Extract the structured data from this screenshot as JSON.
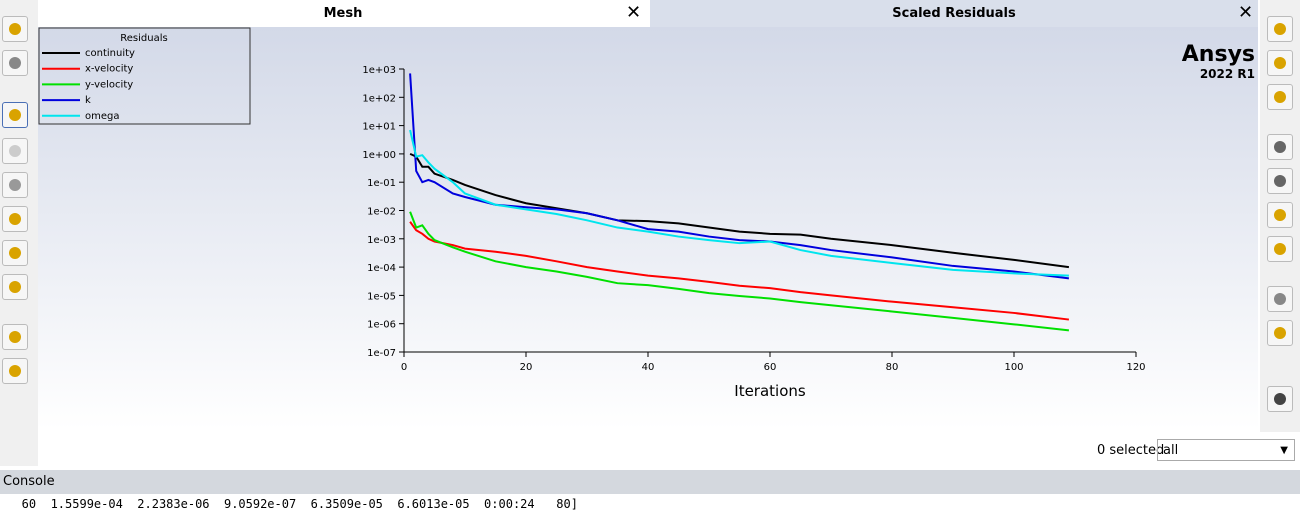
{
  "tabs": {
    "mesh": "Mesh",
    "residuals": "Scaled Residuals"
  },
  "logo": {
    "brand": "Ansys",
    "version": "2022 R1"
  },
  "selection": {
    "count": "0 selected",
    "filter": "all"
  },
  "console": {
    "title": "Console",
    "line": "   60  1.5599e-04  2.2383e-06  9.0592e-07  6.3509e-05  6.6013e-05  0:00:24   80]"
  },
  "chart_data": {
    "type": "line",
    "log_y": true,
    "legend_title": "Residuals",
    "xlabel": "Iterations",
    "x": [
      1,
      2,
      3,
      4,
      5,
      8,
      10,
      15,
      20,
      25,
      30,
      35,
      40,
      45,
      50,
      55,
      60,
      65,
      70,
      80,
      90,
      100,
      109
    ],
    "series": [
      {
        "name": "continuity",
        "color": "#000000",
        "values": [
          1,
          0.8,
          0.35,
          0.35,
          0.2,
          0.12,
          0.08,
          0.035,
          0.018,
          0.012,
          0.008,
          0.0045,
          0.0042,
          0.0035,
          0.0025,
          0.0018,
          0.0015,
          0.0014,
          0.001,
          0.0006,
          0.00032,
          0.00018,
          0.0001
        ]
      },
      {
        "name": "x-velocity",
        "color": "#ff0000",
        "values": [
          0.004,
          0.002,
          0.0015,
          0.001,
          0.0008,
          0.0006,
          0.00045,
          0.00035,
          0.00025,
          0.00016,
          0.0001,
          7e-05,
          5e-05,
          4e-05,
          3e-05,
          2.2e-05,
          1.8e-05,
          1.3e-05,
          1e-05,
          6e-06,
          3.8e-06,
          2.4e-06,
          1.4e-06
        ]
      },
      {
        "name": "y-velocity",
        "color": "#00e000",
        "values": [
          0.009,
          0.0025,
          0.003,
          0.0015,
          0.0009,
          0.0005,
          0.00035,
          0.00016,
          0.0001,
          7e-05,
          4.5e-05,
          2.7e-05,
          2.3e-05,
          1.7e-05,
          1.2e-05,
          9.5e-06,
          7.8e-06,
          5.8e-06,
          4.5e-06,
          2.7e-06,
          1.6e-06,
          9.5e-07,
          5.8e-07
        ]
      },
      {
        "name": "k",
        "color": "#0000dd",
        "values": [
          700,
          0.25,
          0.1,
          0.12,
          0.1,
          0.04,
          0.03,
          0.016,
          0.013,
          0.011,
          0.008,
          0.0045,
          0.0022,
          0.0018,
          0.0012,
          0.0009,
          0.0008,
          0.0006,
          0.0004,
          0.00022,
          0.00011,
          7e-05,
          4e-05
        ]
      },
      {
        "name": "omega",
        "color": "#00e5ee",
        "values": [
          7,
          0.8,
          0.9,
          0.5,
          0.3,
          0.1,
          0.04,
          0.016,
          0.011,
          0.0075,
          0.0045,
          0.0025,
          0.0018,
          0.0012,
          0.0009,
          0.0007,
          0.0008,
          0.0004,
          0.00025,
          0.00014,
          8e-05,
          6e-05,
          5e-05
        ]
      }
    ],
    "xlim": [
      0,
      120
    ],
    "xticks": [
      0,
      20,
      40,
      60,
      80,
      100,
      120
    ],
    "ylim": [
      1e-07,
      1000
    ],
    "yticks": [
      {
        "value": 1e-07,
        "label": "1e-07"
      },
      {
        "value": 1e-06,
        "label": "1e-06"
      },
      {
        "value": 1e-05,
        "label": "1e-05"
      },
      {
        "value": 0.0001,
        "label": "1e-04"
      },
      {
        "value": 0.001,
        "label": "1e-03"
      },
      {
        "value": 0.01,
        "label": "1e-02"
      },
      {
        "value": 0.1,
        "label": "1e-01"
      },
      {
        "value": 1,
        "label": "1e+00"
      },
      {
        "value": 10,
        "label": "1e+01"
      },
      {
        "value": 100,
        "label": "1e+02"
      },
      {
        "value": 1000,
        "label": "1e+03"
      }
    ]
  }
}
